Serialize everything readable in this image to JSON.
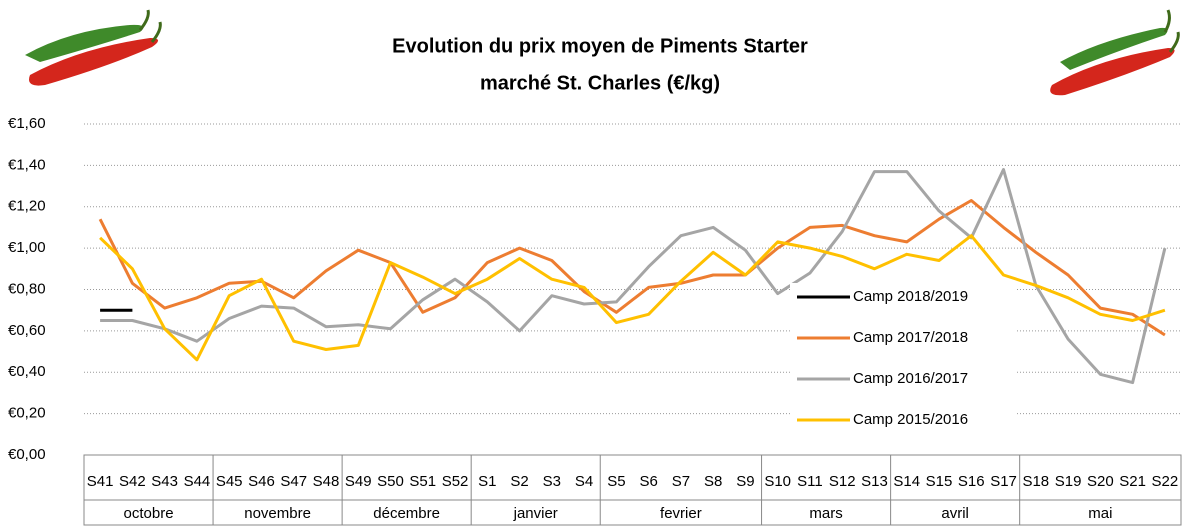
{
  "chart_data": {
    "type": "line",
    "title": "Evolution du prix moyen de Piments Starter",
    "subtitle": "marché St. Charles (€/kg)",
    "categories": [
      "S41",
      "S42",
      "S43",
      "S44",
      "S45",
      "S46",
      "S47",
      "S48",
      "S49",
      "S50",
      "S51",
      "S52",
      "S1",
      "S2",
      "S3",
      "S4",
      "S5",
      "S6",
      "S7",
      "S8",
      "S9",
      "S10",
      "S11",
      "S12",
      "S13",
      "S14",
      "S15",
      "S16",
      "S17",
      "S18",
      "S19",
      "S20",
      "S21",
      "S22"
    ],
    "groups": [
      {
        "label": "octobre",
        "count": 4
      },
      {
        "label": "novembre",
        "count": 4
      },
      {
        "label": "décembre",
        "count": 4
      },
      {
        "label": "janvier",
        "count": 4
      },
      {
        "label": "fevrier",
        "count": 5
      },
      {
        "label": "mars",
        "count": 4
      },
      {
        "label": "avril",
        "count": 4
      },
      {
        "label": "mai",
        "count": 5
      }
    ],
    "series": [
      {
        "name": "Camp 2018/2019",
        "color": "#000000",
        "legend_text_color": "#000000",
        "values": [
          0.7,
          0.7,
          null,
          null,
          null,
          null,
          null,
          null,
          null,
          null,
          null,
          null,
          null,
          null,
          null,
          null,
          null,
          null,
          null,
          null,
          null,
          null,
          null,
          null,
          null,
          null,
          null,
          null,
          null,
          null,
          null,
          null,
          null,
          null
        ]
      },
      {
        "name": "Camp 2017/2018",
        "color": "#ed7d31",
        "legend_text_color": "#c00000",
        "values": [
          1.14,
          0.83,
          0.71,
          0.76,
          0.83,
          0.84,
          0.76,
          0.89,
          0.99,
          0.93,
          0.69,
          0.76,
          0.93,
          1.0,
          0.94,
          0.79,
          0.69,
          0.81,
          0.83,
          0.87,
          0.87,
          1.0,
          1.1,
          1.11,
          1.06,
          1.03,
          1.14,
          1.23,
          1.1,
          0.98,
          0.87,
          0.71,
          0.68,
          0.58
        ]
      },
      {
        "name": "Camp 2016/2017",
        "color": "#a5a5a5",
        "legend_text_color": "#00b050",
        "values": [
          0.65,
          0.65,
          0.61,
          0.55,
          0.66,
          0.72,
          0.71,
          0.62,
          0.63,
          0.61,
          0.75,
          0.85,
          0.74,
          0.6,
          0.77,
          0.73,
          0.74,
          0.91,
          1.06,
          1.1,
          0.99,
          0.78,
          0.88,
          1.08,
          1.37,
          1.37,
          1.18,
          1.05,
          1.38,
          0.82,
          0.56,
          0.39,
          0.35,
          1.0
        ]
      },
      {
        "name": "Camp 2015/2016",
        "color": "#ffc000",
        "legend_text_color": "#000000",
        "values": [
          1.05,
          0.9,
          0.61,
          0.46,
          0.77,
          0.85,
          0.55,
          0.51,
          0.53,
          0.93,
          0.86,
          0.78,
          0.85,
          0.95,
          0.85,
          0.81,
          0.64,
          0.68,
          0.84,
          0.98,
          0.87,
          1.03,
          1.0,
          0.96,
          0.9,
          0.97,
          0.94,
          1.06,
          0.87,
          0.82,
          0.76,
          0.68,
          0.65,
          0.7
        ]
      }
    ],
    "ylim": [
      0,
      1.6
    ],
    "yticks": [
      {
        "value": 0,
        "label": "€0,00"
      },
      {
        "value": 0.2,
        "label": "€0,20"
      },
      {
        "value": 0.4,
        "label": "€0,40"
      },
      {
        "value": 0.6,
        "label": "€0,60"
      },
      {
        "value": 0.8,
        "label": "€0,80"
      },
      {
        "value": 1.0,
        "label": "€1,00"
      },
      {
        "value": 1.2,
        "label": "€1,20"
      },
      {
        "value": 1.4,
        "label": "€1,40"
      },
      {
        "value": 1.6,
        "label": "€1,60"
      }
    ],
    "grid": true,
    "legend": "right"
  }
}
